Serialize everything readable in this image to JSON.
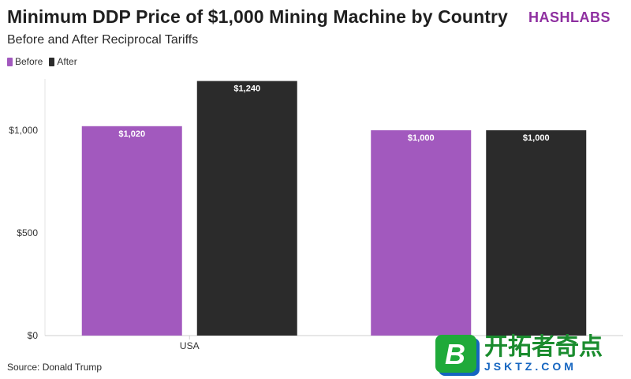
{
  "header": {
    "title": "Minimum DDP Price of $1,000 Mining Machine by Country",
    "subtitle": "Before and After Reciprocal Tariffs",
    "brand": "HASHLABS"
  },
  "legend": [
    {
      "label": "Before",
      "color": "#a259be"
    },
    {
      "label": "After",
      "color": "#2b2b2b"
    }
  ],
  "footer": {
    "source": "Source: Donald Trump"
  },
  "watermark": {
    "cn": "开拓者奇点",
    "en": "JSKTZ.COM",
    "logo_letter": "B"
  },
  "chart_data": {
    "type": "bar",
    "categories": [
      "USA",
      ""
    ],
    "series": [
      {
        "name": "Before",
        "values": [
          1020,
          1000
        ],
        "labels": [
          "$1,020",
          "$1,000"
        ],
        "color": "#a259be"
      },
      {
        "name": "After",
        "values": [
          1240,
          1000
        ],
        "labels": [
          "$1,240",
          "$1,000"
        ],
        "color": "#2b2b2b"
      }
    ],
    "yticks": [
      0,
      500,
      1000
    ],
    "ytick_labels": [
      "$0",
      "$500",
      "$1,000"
    ],
    "ylim": [
      0,
      1250
    ],
    "grid": false,
    "legend_position": "top-left"
  }
}
